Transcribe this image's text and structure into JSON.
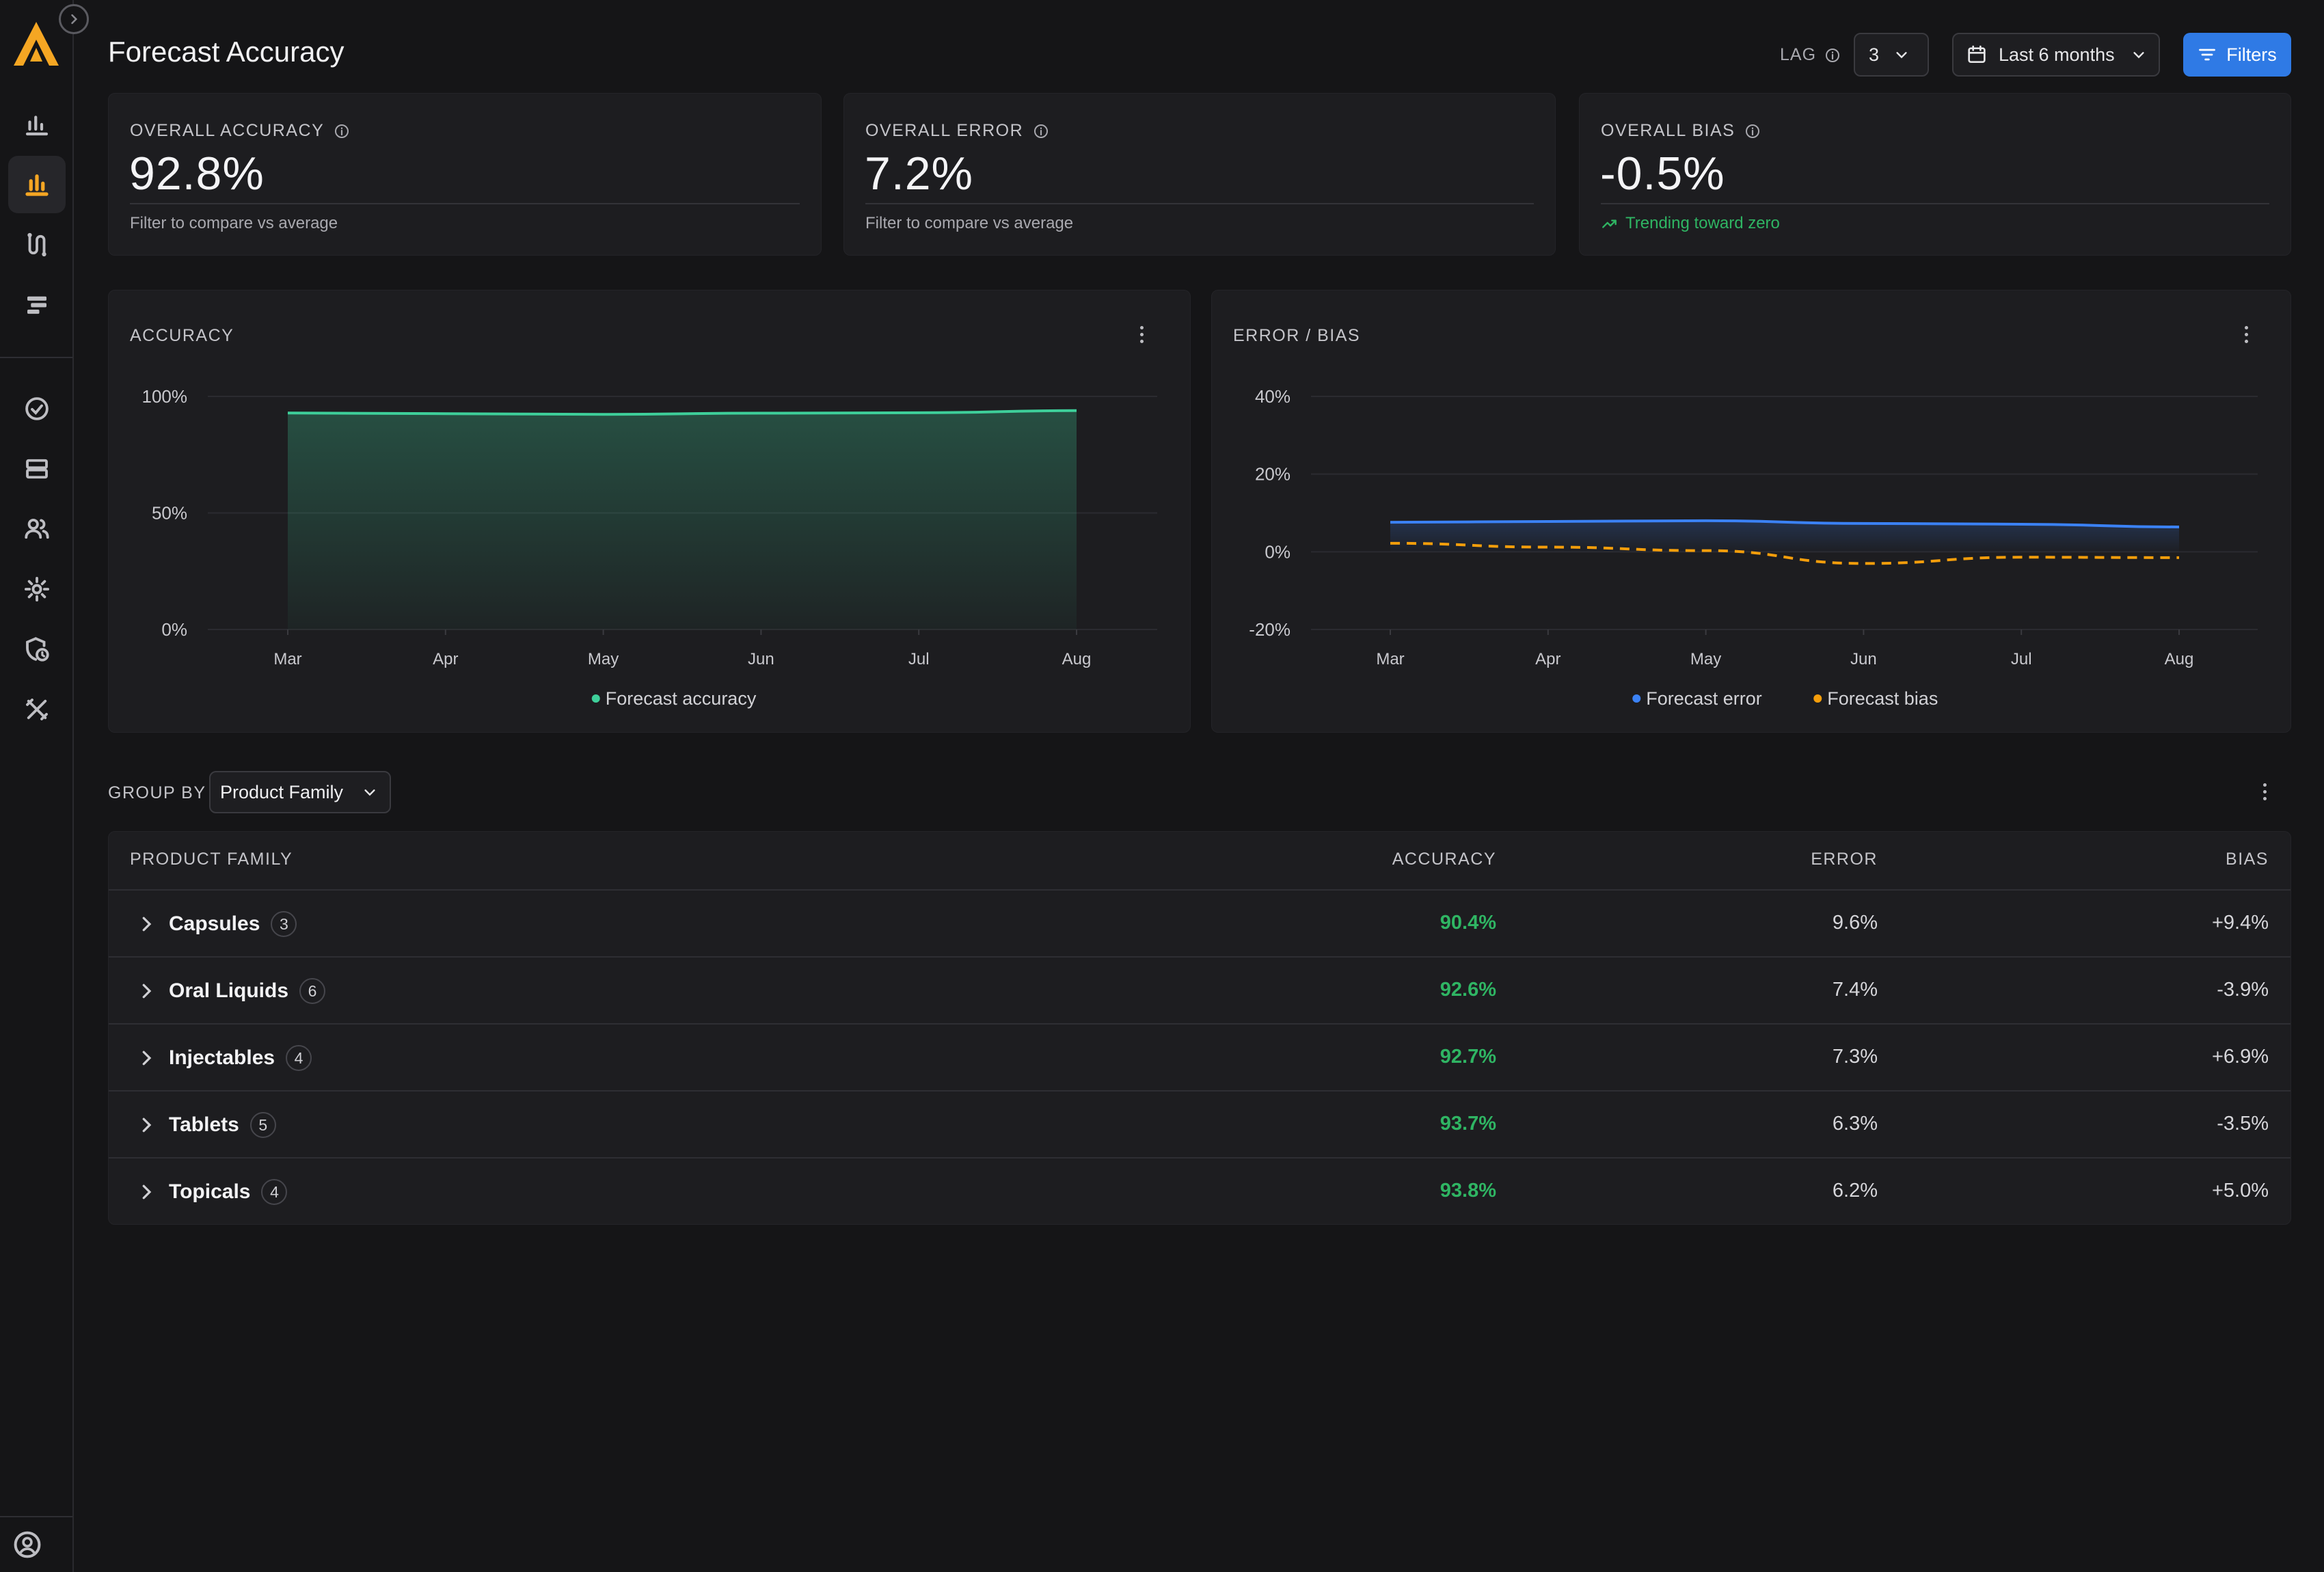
{
  "page": {
    "title": "Forecast Accuracy"
  },
  "header": {
    "lag_label": "LAG",
    "lag_value": "3",
    "date_range": "Last 6 months",
    "filters_label": "Filters"
  },
  "kpis": [
    {
      "title": "OVERALL ACCURACY",
      "value": "92.8%",
      "sub": "Filter to compare vs average"
    },
    {
      "title": "OVERALL ERROR",
      "value": "7.2%",
      "sub": "Filter to compare vs average"
    },
    {
      "title": "OVERALL BIAS",
      "value": "-0.5%",
      "sub": "Trending toward zero"
    }
  ],
  "chart_data": [
    {
      "type": "area",
      "title": "ACCURACY",
      "categories": [
        "Mar",
        "Apr",
        "May",
        "Jun",
        "Jul",
        "Aug"
      ],
      "series": [
        {
          "name": "Forecast accuracy",
          "values": [
            92.9,
            92.6,
            92.3,
            92.8,
            93.0,
            93.9
          ],
          "color": "#3ecf9a"
        }
      ],
      "yticks": [
        "100%",
        "50%",
        "0%"
      ],
      "ylim": [
        0,
        100
      ],
      "legend": "bottom-center"
    },
    {
      "type": "line",
      "title": "ERROR / BIAS",
      "categories": [
        "Mar",
        "Apr",
        "May",
        "Jun",
        "Jul",
        "Aug"
      ],
      "series": [
        {
          "name": "Forecast error",
          "values": [
            7.6,
            7.8,
            8.0,
            7.3,
            7.1,
            6.4
          ],
          "color": "#3b82f6"
        },
        {
          "name": "Forecast bias",
          "values": [
            2.2,
            1.2,
            0.3,
            -3.0,
            -1.4,
            -1.5
          ],
          "color": "#f59e0b"
        }
      ],
      "yticks": [
        "40%",
        "20%",
        "0%",
        "-20%"
      ],
      "ylim": [
        -20,
        40
      ],
      "legend": "bottom-center"
    }
  ],
  "groupby": {
    "label": "GROUP BY",
    "value": "Product Family"
  },
  "table": {
    "headers": [
      "PRODUCT FAMILY",
      "ACCURACY",
      "ERROR",
      "BIAS"
    ],
    "rows": [
      {
        "name": "Capsules",
        "count": "3",
        "accuracy": "90.4%",
        "error": "9.6%",
        "bias": "+9.4%"
      },
      {
        "name": "Oral Liquids",
        "count": "6",
        "accuracy": "92.6%",
        "error": "7.4%",
        "bias": "-3.9%"
      },
      {
        "name": "Injectables",
        "count": "4",
        "accuracy": "92.7%",
        "error": "7.3%",
        "bias": "+6.9%"
      },
      {
        "name": "Tablets",
        "count": "5",
        "accuracy": "93.7%",
        "error": "6.3%",
        "bias": "-3.5%"
      },
      {
        "name": "Topicals",
        "count": "4",
        "accuracy": "93.8%",
        "error": "6.2%",
        "bias": "+5.0%"
      }
    ]
  },
  "colors": {
    "accent": "#2f7ae5",
    "logo": "#f5a623",
    "positive": "#2fb563",
    "nav_active": "#f5a623",
    "icons": "#bdbdc2"
  },
  "sidebar": {
    "icons": [
      "bar-chart-icon",
      "bar-chart-active-icon",
      "route-icon",
      "gantt-icon",
      "check-circle-icon",
      "server-icon",
      "users-icon",
      "gear-icon",
      "shield-clock-icon",
      "tools-icon",
      "user-circle-icon"
    ]
  }
}
